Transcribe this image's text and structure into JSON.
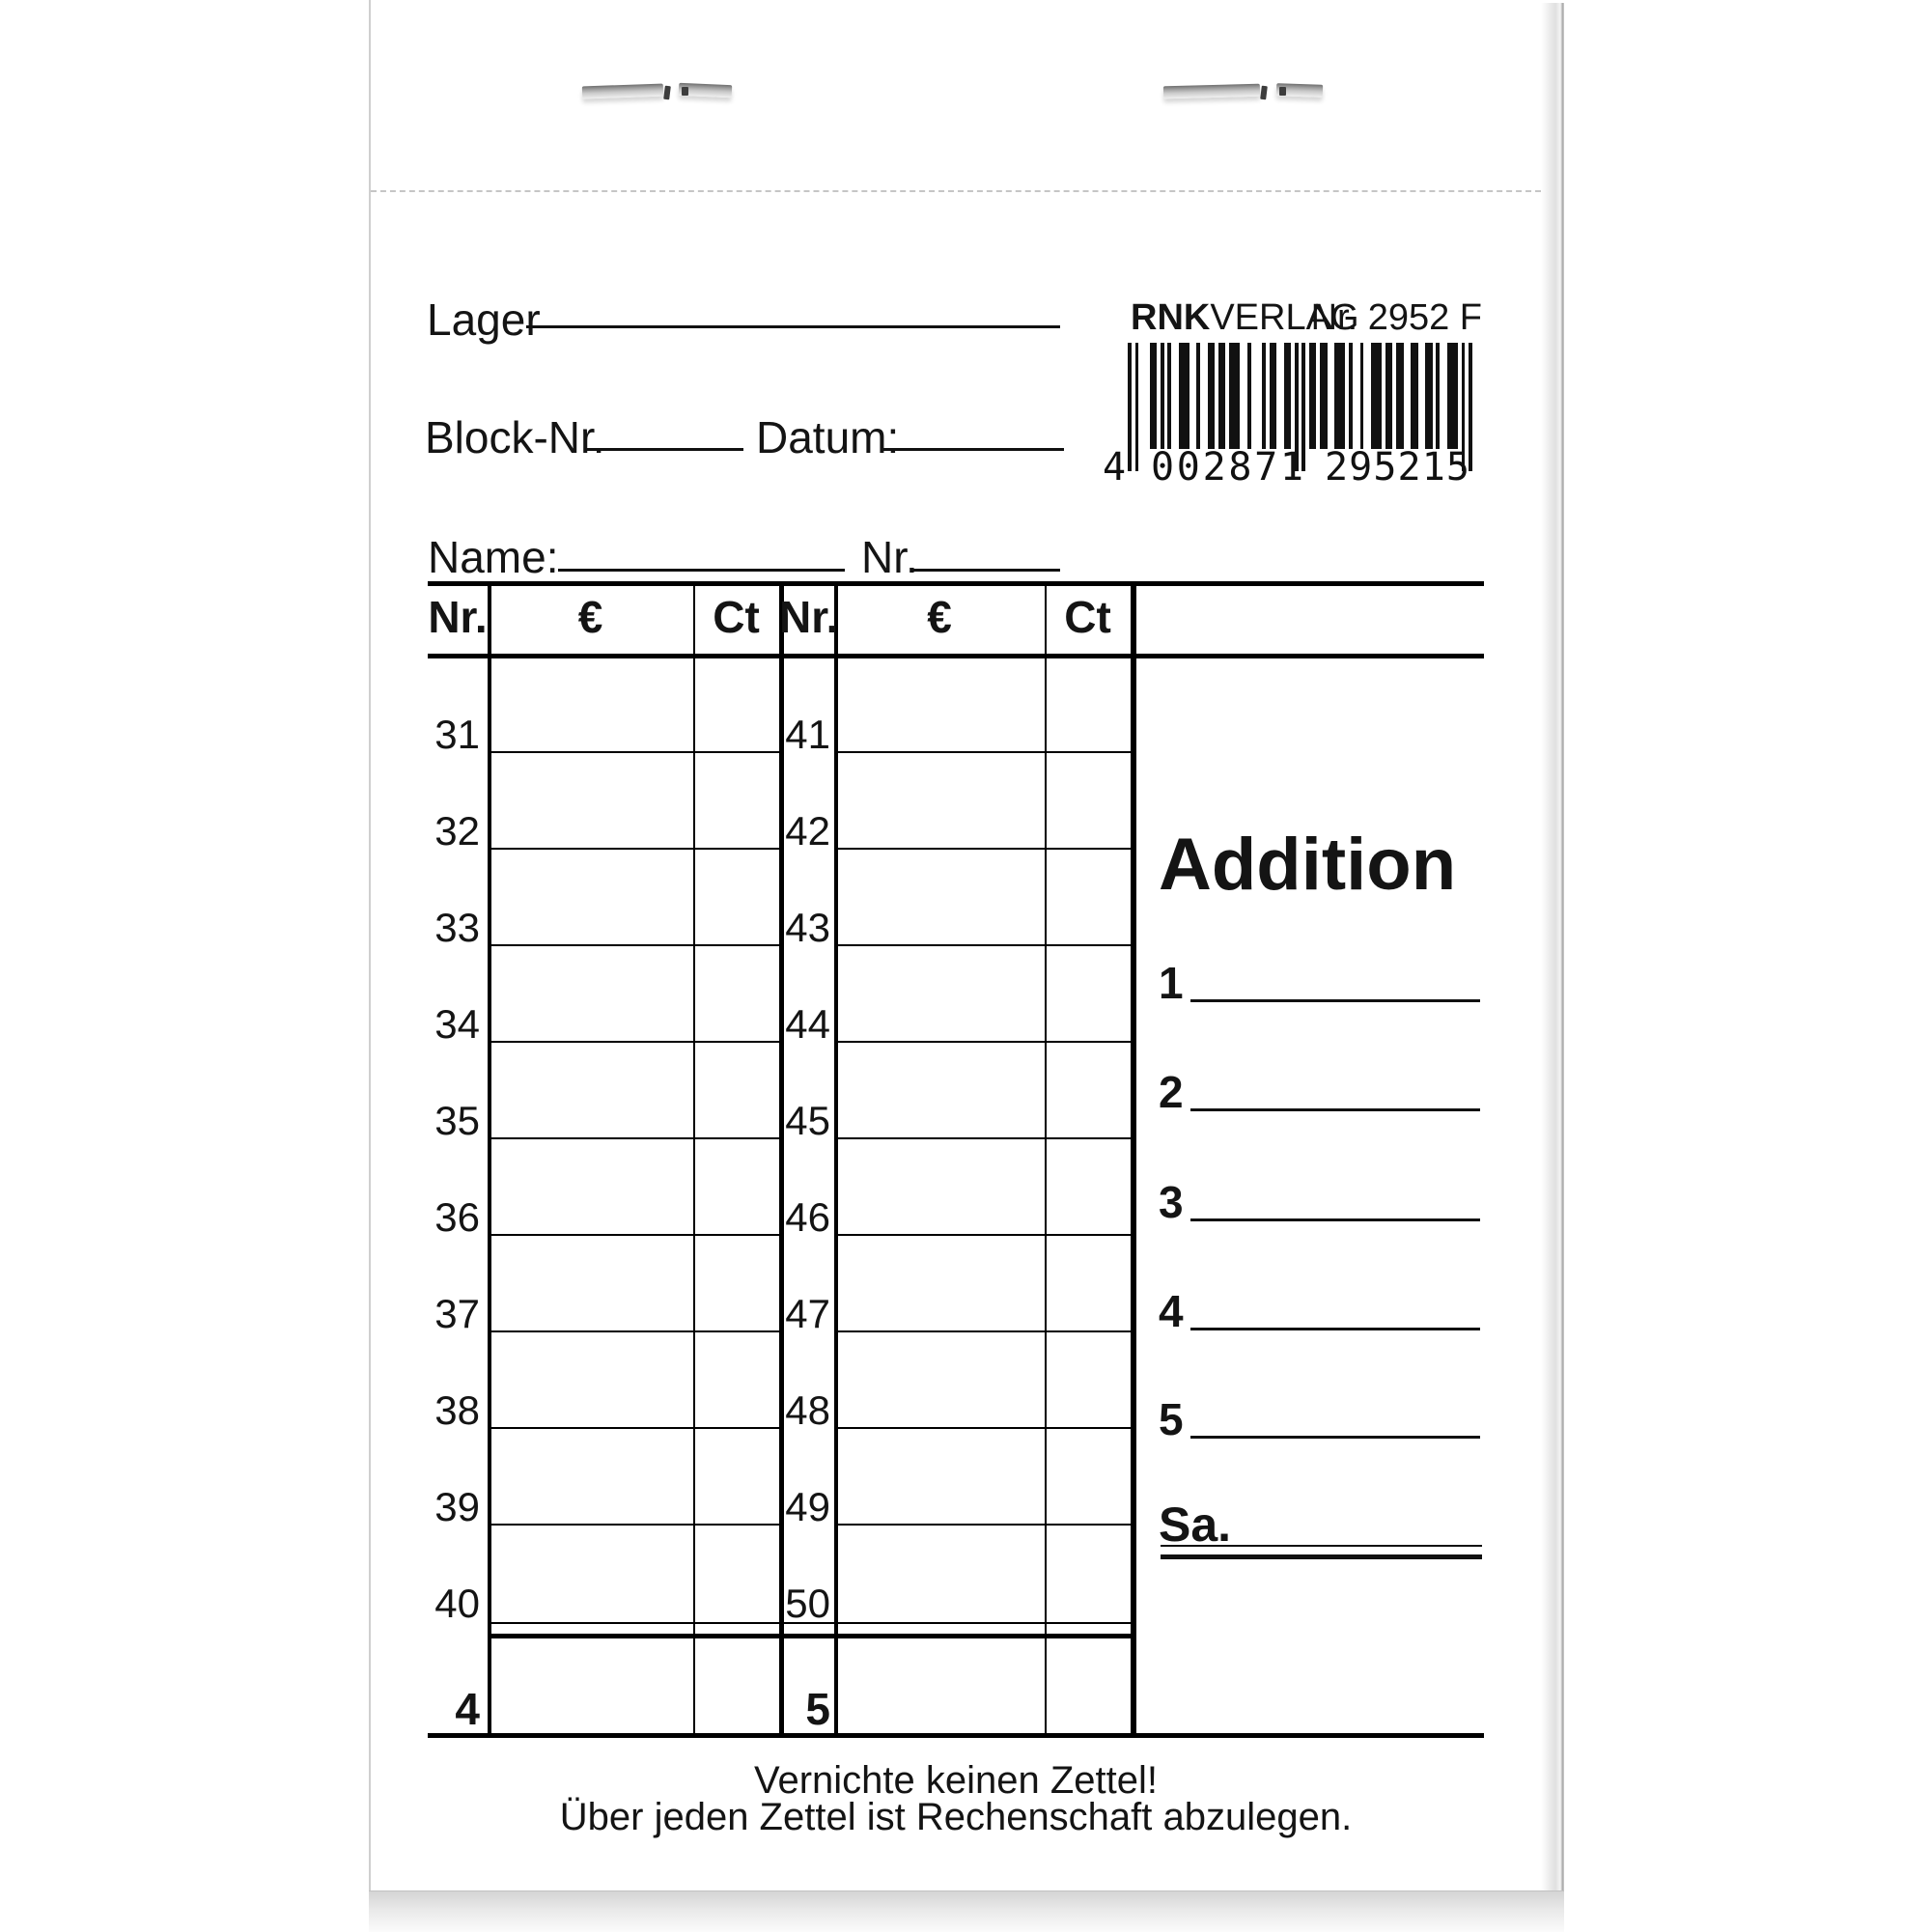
{
  "brand": {
    "name_bold": "RNK",
    "name_rest": "VERLAG",
    "product_no": "Nr. 2952 F"
  },
  "barcode": {
    "digits": "4002871295215"
  },
  "fields": {
    "lager_label": "Lager",
    "block_nr_label": "Block-Nr.",
    "datum_label": "Datum:",
    "name_label": "Name:",
    "nr_label": "Nr."
  },
  "table": {
    "headers": [
      "Nr.",
      "€",
      "Ct",
      "Nr.",
      "€",
      "Ct"
    ],
    "rows_left": [
      "31",
      "32",
      "33",
      "34",
      "35",
      "36",
      "37",
      "38",
      "39",
      "40"
    ],
    "rows_right": [
      "41",
      "42",
      "43",
      "44",
      "45",
      "46",
      "47",
      "48",
      "49",
      "50"
    ],
    "carry_left": "4",
    "carry_right": "5"
  },
  "addition": {
    "title": "Addition",
    "items": [
      "1",
      "2",
      "3",
      "4",
      "5"
    ],
    "sum_label": "Sa."
  },
  "footer": {
    "line1": "Vernichte keinen Zettel!",
    "line2": "Über jeden Zettel ist Rechenschaft abzulegen."
  },
  "colors": {
    "ink": "#111111",
    "paper": "#ffffff",
    "perforation": "#c6c6c6",
    "staple": "#9c9c9c"
  }
}
